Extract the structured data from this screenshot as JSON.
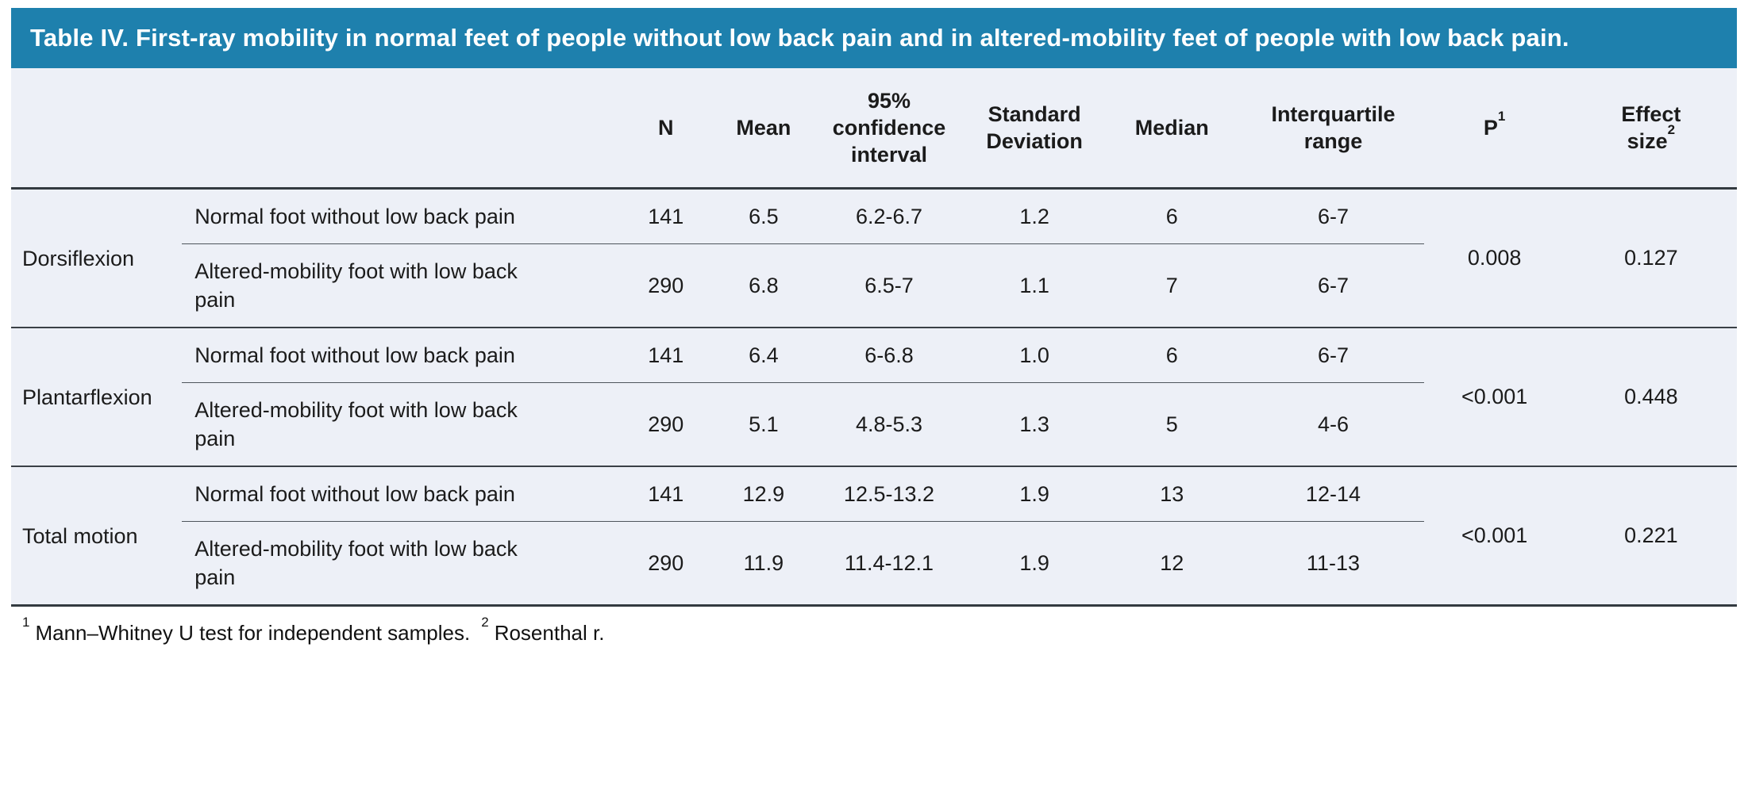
{
  "table": {
    "title": "Table IV. First-ray mobility in normal feet of people without low back pain and in altered-mobility feet of people with low back pain.",
    "colors": {
      "title_bar_bg": "#1e80ad",
      "title_text": "#ffffff",
      "body_bg": "#edf0f7",
      "rule_dark": "#333a40",
      "rule_light": "#4e555c"
    },
    "headers": {
      "n": "N",
      "mean": "Mean",
      "ci": "95% confidence interval",
      "sd": "Standard Deviation",
      "median": "Median",
      "iqr": "Interquartile range",
      "p": "P",
      "p_sup": "1",
      "effect_line1": "Effect",
      "effect_line2": "size",
      "effect_sup": "2"
    },
    "groups": [
      {
        "label": "Dorsiflexion",
        "p": "0.008",
        "effect_size": "0.127",
        "rows": [
          {
            "condition": "Normal foot without low back pain",
            "n": "141",
            "mean": "6.5",
            "ci": "6.2-6.7",
            "sd": "1.2",
            "median": "6",
            "iqr": "6-7"
          },
          {
            "condition": "Altered-mobility foot with low back pain",
            "n": "290",
            "mean": "6.8",
            "ci": "6.5-7",
            "sd": "1.1",
            "median": "7",
            "iqr": "6-7"
          }
        ]
      },
      {
        "label": "Plantarflexion",
        "p": "<0.001",
        "effect_size": "0.448",
        "rows": [
          {
            "condition": "Normal foot without low back pain",
            "n": "141",
            "mean": "6.4",
            "ci": "6-6.8",
            "sd": "1.0",
            "median": "6",
            "iqr": "6-7"
          },
          {
            "condition": "Altered-mobility foot with low back pain",
            "n": "290",
            "mean": "5.1",
            "ci": "4.8-5.3",
            "sd": "1.3",
            "median": "5",
            "iqr": "4-6"
          }
        ]
      },
      {
        "label": "Total motion",
        "p": "<0.001",
        "effect_size": "0.221",
        "rows": [
          {
            "condition": "Normal foot without low back pain",
            "n": "141",
            "mean": "12.9",
            "ci": "12.5-13.2",
            "sd": "1.9",
            "median": "13",
            "iqr": "12-14"
          },
          {
            "condition": "Altered-mobility foot with low back pain",
            "n": "290",
            "mean": "11.9",
            "ci": "11.4-12.1",
            "sd": "1.9",
            "median": "12",
            "iqr": "11-13"
          }
        ]
      }
    ],
    "footnotes": [
      {
        "sup": "1",
        "text": "Mann–Whitney U test for independent samples."
      },
      {
        "sup": "2",
        "text": "Rosenthal r."
      }
    ]
  }
}
